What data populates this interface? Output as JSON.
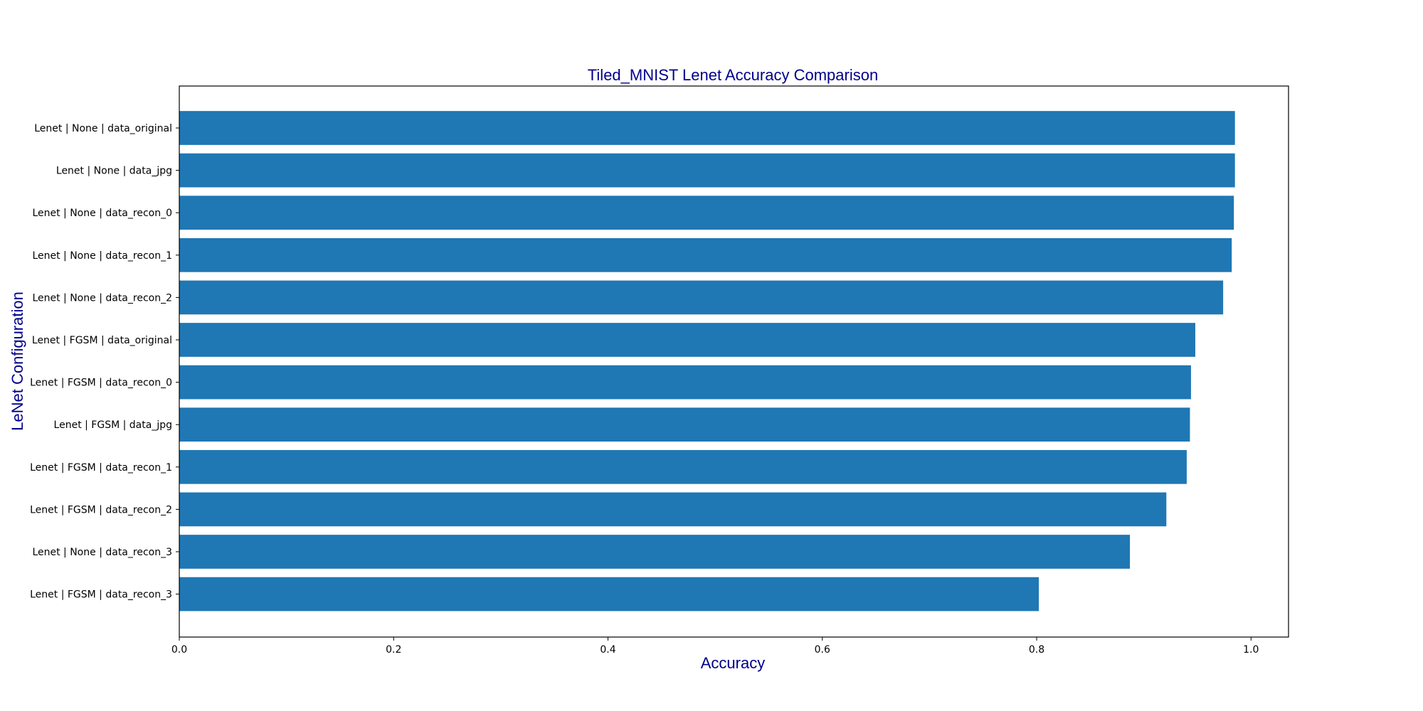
{
  "chart_data": {
    "type": "bar",
    "orientation": "horizontal",
    "title": "Tiled_MNIST Lenet Accuracy Comparison",
    "xlabel": "Accuracy",
    "ylabel": "LeNet Configuration",
    "xlim": [
      0,
      1.035
    ],
    "xticks": [
      0.0,
      0.2,
      0.4,
      0.6,
      0.8,
      1.0
    ],
    "xtick_labels": [
      "0.0",
      "0.2",
      "0.4",
      "0.6",
      "0.8",
      "1.0"
    ],
    "grid": false,
    "categories": [
      "Lenet | None | data_original",
      "Lenet | None | data_jpg",
      "Lenet | None | data_recon_0",
      "Lenet | None | data_recon_1",
      "Lenet | None | data_recon_2",
      "Lenet | FGSM | data_original",
      "Lenet | FGSM | data_recon_0",
      "Lenet | FGSM | data_jpg",
      "Lenet | FGSM | data_recon_1",
      "Lenet | FGSM | data_recon_2",
      "Lenet | None | data_recon_3",
      "Lenet | FGSM | data_recon_3"
    ],
    "values": [
      0.985,
      0.985,
      0.984,
      0.982,
      0.974,
      0.948,
      0.944,
      0.943,
      0.94,
      0.921,
      0.887,
      0.802
    ],
    "colors": {
      "bar": "#1f77b4",
      "title": "#00008b",
      "label": "#00008b",
      "text": "#000000",
      "axis": "#000000"
    }
  }
}
